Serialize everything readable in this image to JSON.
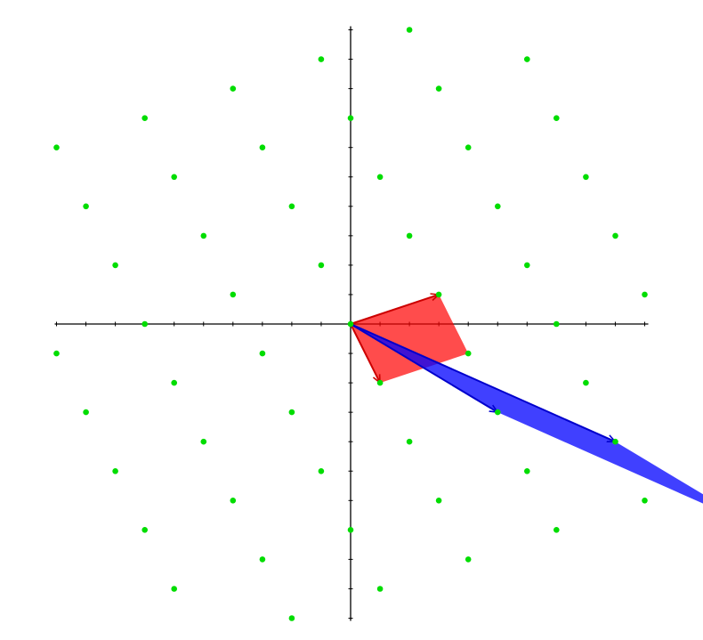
{
  "diagram": {
    "type": "lattice",
    "colors": {
      "axes": "#000000",
      "lattice_point": "#00dd00",
      "basis1": "#ff0000",
      "basis2": "#0000ff"
    },
    "axes": {
      "x_range": [
        -10,
        10
      ],
      "y_range": [
        -10,
        10
      ],
      "tick_step": 1,
      "arrowheads": false
    },
    "basis1": {
      "v1": [
        3,
        1
      ],
      "v2": [
        1,
        -2
      ],
      "fill": "#ff0000",
      "fill_opacity": 0.7
    },
    "basis2": {
      "v1": [
        5,
        -3
      ],
      "v2": [
        9,
        -4
      ],
      "fill": "#0000ff",
      "fill_opacity": 0.75
    },
    "lattice_points": [
      [
        2,
        10
      ],
      [
        -1,
        9
      ],
      [
        6,
        9
      ],
      [
        -4,
        8
      ],
      [
        3,
        8
      ],
      [
        -7,
        7
      ],
      [
        0,
        7
      ],
      [
        7,
        7
      ],
      [
        -10,
        6
      ],
      [
        -3,
        6
      ],
      [
        4,
        6
      ],
      [
        -6,
        5
      ],
      [
        1,
        5
      ],
      [
        8,
        5
      ],
      [
        -9,
        4
      ],
      [
        -2,
        4
      ],
      [
        5,
        4
      ],
      [
        -5,
        3
      ],
      [
        2,
        3
      ],
      [
        9,
        3
      ],
      [
        -8,
        2
      ],
      [
        -1,
        2
      ],
      [
        6,
        2
      ],
      [
        -4,
        1
      ],
      [
        3,
        1
      ],
      [
        10,
        1
      ],
      [
        -7,
        0
      ],
      [
        0,
        0
      ],
      [
        7,
        0
      ],
      [
        -10,
        -1
      ],
      [
        -3,
        -1
      ],
      [
        4,
        -1
      ],
      [
        -6,
        -2
      ],
      [
        1,
        -2
      ],
      [
        8,
        -2
      ],
      [
        -9,
        -3
      ],
      [
        -2,
        -3
      ],
      [
        5,
        -3
      ],
      [
        -5,
        -4
      ],
      [
        2,
        -4
      ],
      [
        9,
        -4
      ],
      [
        -8,
        -5
      ],
      [
        -1,
        -5
      ],
      [
        6,
        -5
      ],
      [
        -4,
        -6
      ],
      [
        3,
        -6
      ],
      [
        10,
        -6
      ],
      [
        -7,
        -7
      ],
      [
        0,
        -7
      ],
      [
        7,
        -7
      ],
      [
        -3,
        -8
      ],
      [
        4,
        -8
      ],
      [
        -6,
        -9
      ],
      [
        1,
        -9
      ],
      [
        -2,
        -10
      ]
    ]
  }
}
